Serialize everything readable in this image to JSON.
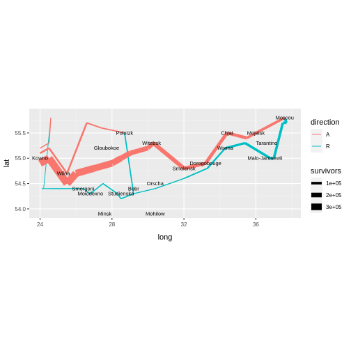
{
  "chart_data": {
    "type": "line",
    "title": "",
    "xlabel": "long",
    "ylabel": "lat",
    "xlim": [
      23.4,
      38.5
    ],
    "ylim": [
      53.82,
      55.98
    ],
    "x_ticks": [
      24,
      28,
      32,
      36
    ],
    "y_ticks": [
      54.0,
      54.5,
      55.0,
      55.5
    ],
    "x_tick_labels": [
      "24",
      "28",
      "32",
      "36"
    ],
    "y_tick_labels": [
      "54.0",
      "54.5",
      "55.0",
      "55.5"
    ],
    "grid": true,
    "legend_position": "right",
    "colors": {
      "A": "#F8766D",
      "R": "#00BFC4"
    },
    "legend": {
      "color_title": "direction",
      "color_entries": [
        "A",
        "R"
      ],
      "size_title": "survivors",
      "size_entries": [
        {
          "label": "1e+05",
          "value": 100000
        },
        {
          "label": "2e+05",
          "value": 200000
        },
        {
          "label": "3e+05",
          "value": 300000
        }
      ]
    },
    "series": [
      {
        "name": "A",
        "group": 1,
        "points": [
          {
            "long": 24.0,
            "lat": 54.9,
            "survivors": 340000
          },
          {
            "long": 24.5,
            "lat": 55.0,
            "survivors": 340000
          },
          {
            "long": 25.5,
            "lat": 54.5,
            "survivors": 340000
          },
          {
            "long": 26.0,
            "lat": 54.7,
            "survivors": 320000
          },
          {
            "long": 27.0,
            "lat": 54.8,
            "survivors": 300000
          },
          {
            "long": 28.0,
            "lat": 54.9,
            "survivors": 280000
          },
          {
            "long": 28.5,
            "lat": 55.0,
            "survivors": 240000
          },
          {
            "long": 29.0,
            "lat": 55.1,
            "survivors": 210000
          },
          {
            "long": 30.0,
            "lat": 55.2,
            "survivors": 180000
          },
          {
            "long": 30.3,
            "lat": 55.3,
            "survivors": 175000
          },
          {
            "long": 32.0,
            "lat": 54.8,
            "survivors": 145000
          },
          {
            "long": 33.2,
            "lat": 54.9,
            "survivors": 140000
          },
          {
            "long": 34.4,
            "lat": 55.5,
            "survivors": 127100
          },
          {
            "long": 35.5,
            "lat": 55.4,
            "survivors": 100000
          },
          {
            "long": 36.0,
            "lat": 55.5,
            "survivors": 100000
          },
          {
            "long": 37.6,
            "lat": 55.8,
            "survivors": 100000
          }
        ]
      },
      {
        "name": "R",
        "group": 1,
        "points": [
          {
            "long": 37.6,
            "lat": 55.8,
            "survivors": 100000
          },
          {
            "long": 37.7,
            "lat": 55.7,
            "survivors": 100000
          },
          {
            "long": 37.5,
            "lat": 55.7,
            "survivors": 98000
          },
          {
            "long": 37.0,
            "lat": 55.0,
            "survivors": 97000
          },
          {
            "long": 36.8,
            "lat": 55.0,
            "survivors": 96000
          },
          {
            "long": 35.4,
            "lat": 55.3,
            "survivors": 87000
          },
          {
            "long": 34.3,
            "lat": 55.2,
            "survivors": 55000
          },
          {
            "long": 33.3,
            "lat": 54.8,
            "survivors": 37000
          },
          {
            "long": 32.0,
            "lat": 54.6,
            "survivors": 24000
          },
          {
            "long": 30.4,
            "lat": 54.4,
            "survivors": 20000
          },
          {
            "long": 29.2,
            "lat": 54.3,
            "survivors": 20000
          },
          {
            "long": 28.5,
            "lat": 54.2,
            "survivors": 20000
          },
          {
            "long": 28.3,
            "lat": 54.3,
            "survivors": 20000
          },
          {
            "long": 27.5,
            "lat": 54.5,
            "survivors": 20000
          },
          {
            "long": 26.8,
            "lat": 54.3,
            "survivors": 12000
          },
          {
            "long": 26.4,
            "lat": 54.4,
            "survivors": 14000
          },
          {
            "long": 24.6,
            "lat": 54.4,
            "survivors": 8000
          },
          {
            "long": 24.4,
            "lat": 54.4,
            "survivors": 4000
          },
          {
            "long": 24.2,
            "lat": 54.4,
            "survivors": 4000
          },
          {
            "long": 24.1,
            "lat": 54.4,
            "survivors": 4000
          }
        ]
      },
      {
        "name": "A",
        "group": 2,
        "points": [
          {
            "long": 24.0,
            "lat": 55.1,
            "survivors": 60000
          },
          {
            "long": 24.5,
            "lat": 55.2,
            "survivors": 60000
          },
          {
            "long": 25.5,
            "lat": 54.7,
            "survivors": 60000
          },
          {
            "long": 26.6,
            "lat": 55.7,
            "survivors": 40000
          },
          {
            "long": 27.4,
            "lat": 55.6,
            "survivors": 33000
          },
          {
            "long": 28.7,
            "lat": 55.5,
            "survivors": 33000
          }
        ]
      },
      {
        "name": "R",
        "group": 2,
        "points": [
          {
            "long": 28.7,
            "lat": 55.5,
            "survivors": 33000
          },
          {
            "long": 29.2,
            "lat": 54.3,
            "survivors": 30000
          },
          {
            "long": 28.5,
            "lat": 54.2,
            "survivors": 30000
          },
          {
            "long": 28.3,
            "lat": 54.3,
            "survivors": 28000
          },
          {
            "long": 27.5,
            "lat": 54.5,
            "survivors": 20000
          },
          {
            "long": 26.8,
            "lat": 54.3,
            "survivors": 12000
          },
          {
            "long": 26.4,
            "lat": 54.4,
            "survivors": 14000
          },
          {
            "long": 24.6,
            "lat": 54.4,
            "survivors": 8000
          },
          {
            "long": 24.4,
            "lat": 54.4,
            "survivors": 4000
          },
          {
            "long": 24.2,
            "lat": 54.4,
            "survivors": 4000
          },
          {
            "long": 24.1,
            "lat": 54.4,
            "survivors": 4000
          }
        ]
      },
      {
        "name": "A",
        "group": 3,
        "points": [
          {
            "long": 24.0,
            "lat": 55.2,
            "survivors": 22000
          },
          {
            "long": 24.5,
            "lat": 55.3,
            "survivors": 22000
          },
          {
            "long": 24.6,
            "lat": 55.8,
            "survivors": 6000
          }
        ]
      },
      {
        "name": "R",
        "group": 3,
        "points": [
          {
            "long": 24.6,
            "lat": 55.8,
            "survivors": 6000
          },
          {
            "long": 24.2,
            "lat": 54.4,
            "survivors": 6000
          },
          {
            "long": 24.1,
            "lat": 54.4,
            "survivors": 6000
          }
        ]
      }
    ],
    "cities": [
      {
        "name": "Kowno",
        "long": 24.0,
        "lat": 55.0
      },
      {
        "name": "Wilna",
        "long": 25.3,
        "lat": 54.7
      },
      {
        "name": "Smorgoni",
        "long": 26.4,
        "lat": 54.4
      },
      {
        "name": "Moiodexno",
        "long": 26.8,
        "lat": 54.3
      },
      {
        "name": "Gloubokoe",
        "long": 27.7,
        "lat": 55.2
      },
      {
        "name": "Minsk",
        "long": 27.6,
        "lat": 53.9
      },
      {
        "name": "Studienska",
        "long": 28.5,
        "lat": 54.3
      },
      {
        "name": "Polotzk",
        "long": 28.7,
        "lat": 55.5
      },
      {
        "name": "Bobr",
        "long": 29.2,
        "lat": 54.4
      },
      {
        "name": "Witebsk",
        "long": 30.2,
        "lat": 55.3
      },
      {
        "name": "Orscha",
        "long": 30.4,
        "lat": 54.5
      },
      {
        "name": "Mohilow",
        "long": 30.4,
        "lat": 53.9
      },
      {
        "name": "Smolensk",
        "long": 32.0,
        "lat": 54.8
      },
      {
        "name": "Dorogobouge",
        "long": 33.2,
        "lat": 54.9
      },
      {
        "name": "Wixma",
        "long": 34.3,
        "lat": 55.2
      },
      {
        "name": "Chjat",
        "long": 34.4,
        "lat": 55.5
      },
      {
        "name": "Mojaisk",
        "long": 36.0,
        "lat": 55.5
      },
      {
        "name": "Moscou",
        "long": 37.6,
        "lat": 55.8
      },
      {
        "name": "Tarantino",
        "long": 36.6,
        "lat": 55.3
      },
      {
        "name": "Malo-Jarosewii",
        "long": 36.5,
        "lat": 55.0
      }
    ]
  }
}
